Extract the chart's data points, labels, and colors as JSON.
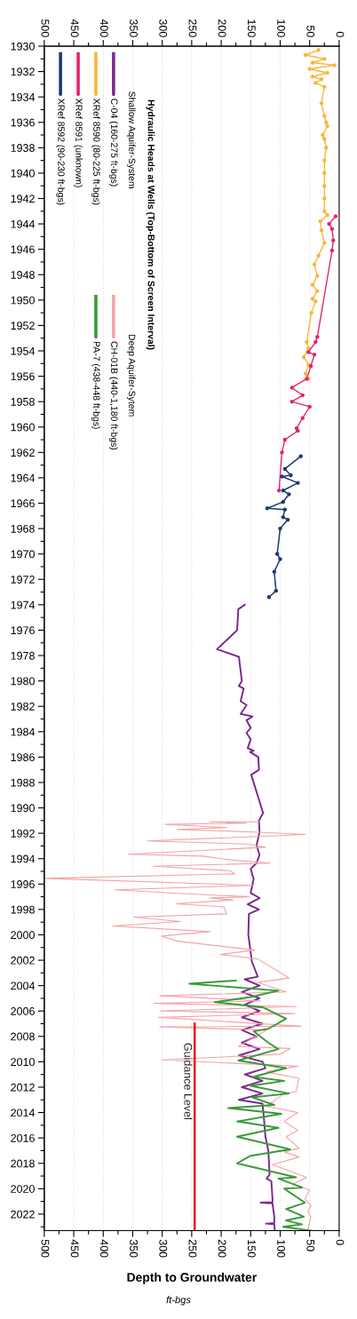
{
  "chart_data": {
    "type": "line",
    "orientation": "horizontal",
    "xlabel": "Depth to Groundwater",
    "legend_title": "Hydraulic Heads at Wells (Top-Bottom of Screen Interval)",
    "annotations": [
      "Shallow Aquifer-System",
      "Deep Aquifer-Sytem",
      "ft-bgs"
    ],
    "xlim": [
      500,
      0
    ],
    "x2lim": [
      500,
      0
    ],
    "xticks": [
      500,
      {
        "value": 475,
        "label": null
      },
      450,
      {
        "value": 425,
        "label": null
      },
      400,
      {
        "value": 375,
        "label": null
      },
      350,
      {
        "value": 325,
        "label": null
      },
      300,
      {
        "value": 275,
        "label": null
      },
      250,
      {
        "value": 225,
        "label": null
      },
      200,
      {
        "value": 175,
        "label": null
      },
      150,
      {
        "value": 125,
        "label": null
      },
      100,
      {
        "value": 75,
        "label": null
      },
      50,
      {
        "value": 25,
        "label": null
      },
      0
    ],
    "x2ticks": [
      500,
      {
        "value": 475,
        "label": null
      },
      450,
      {
        "value": 425,
        "label": null
      },
      400,
      {
        "value": 375,
        "label": null
      },
      350,
      {
        "value": 325,
        "label": null
      },
      300,
      {
        "value": 275,
        "label": null
      },
      250,
      {
        "value": 225,
        "label": null
      },
      200,
      {
        "value": 175,
        "label": null
      },
      150,
      {
        "value": 125,
        "label": null
      },
      100,
      {
        "value": 75,
        "label": null
      },
      50,
      {
        "value": 25,
        "label": null
      },
      0
    ],
    "ylim": [
      2023.3,
      1930
    ],
    "yticks": [
      1930,
      {
        "value": 1931,
        "label": null
      },
      1932,
      {
        "value": 1933,
        "label": null
      },
      1934,
      {
        "value": 1935,
        "label": null
      },
      1936,
      {
        "value": 1937,
        "label": null
      },
      1938,
      {
        "value": 1939,
        "label": null
      },
      1940,
      {
        "value": 1941,
        "label": null
      },
      1942,
      {
        "value": 1943,
        "label": null
      },
      1944,
      {
        "value": 1945,
        "label": null
      },
      1946,
      {
        "value": 1947,
        "label": null
      },
      1948,
      {
        "value": 1949,
        "label": null
      },
      1950,
      {
        "value": 1951,
        "label": null
      },
      1952,
      {
        "value": 1953,
        "label": null
      },
      1954,
      {
        "value": 1955,
        "label": null
      },
      1956,
      {
        "value": 1957,
        "label": null
      },
      1958,
      {
        "value": 1959,
        "label": null
      },
      1960,
      {
        "value": 1961,
        "label": null
      },
      1962,
      {
        "value": 1963,
        "label": null
      },
      1964,
      {
        "value": 1965,
        "label": null
      },
      1966,
      {
        "value": 1967,
        "label": null
      },
      1968,
      {
        "value": 1969,
        "label": null
      },
      1970,
      {
        "value": 1971,
        "label": null
      },
      1972,
      {
        "value": 1973,
        "label": null
      },
      1974,
      {
        "value": 1975,
        "label": null
      },
      1976,
      {
        "value": 1977,
        "label": null
      },
      1978,
      {
        "value": 1979,
        "label": null
      },
      1980,
      {
        "value": 1981,
        "label": null
      },
      1982,
      {
        "value": 1983,
        "label": null
      },
      1984,
      {
        "value": 1985,
        "label": null
      },
      1986,
      {
        "value": 1987,
        "label": null
      },
      1988,
      {
        "value": 1989,
        "label": null
      },
      1990,
      {
        "value": 1991,
        "label": null
      },
      1992,
      {
        "value": 1993,
        "label": null
      },
      1994,
      {
        "value": 1995,
        "label": null
      },
      1996,
      {
        "value": 1997,
        "label": null
      },
      1998,
      {
        "value": 1999,
        "label": null
      },
      2000,
      {
        "value": 2001,
        "label": null
      },
      2002,
      {
        "value": 2003,
        "label": null
      },
      2004,
      {
        "value": 2005,
        "label": null
      },
      2006,
      {
        "value": 2007,
        "label": null
      },
      2008,
      {
        "value": 2009,
        "label": null
      },
      2010,
      {
        "value": 2011,
        "label": null
      },
      2012,
      {
        "value": 2013,
        "label": null
      },
      2014,
      {
        "value": 2015,
        "label": null
      },
      2016,
      {
        "value": 2017,
        "label": null
      },
      2018,
      {
        "value": 2019,
        "label": null
      },
      2020,
      {
        "value": 2021,
        "label": null
      },
      2022,
      {
        "value": 2023,
        "label": null
      }
    ],
    "grid": "x",
    "legend": "top left",
    "series": [
      {
        "name": "C-04 (160-275 ft-bgs)",
        "color": "#7a2a8c",
        "marker": "none",
        "x": [
          1974.0,
          1974.35,
          1976.0,
          1977.5,
          1978.1,
          1980.0,
          1980.4,
          1980.6,
          1981.6,
          1981.9,
          1982.6,
          1982.8,
          1983.1,
          1983.7,
          1984.1,
          1984.6,
          1985.3,
          1985.5,
          1985.6,
          1986.0,
          1987.0,
          1987.4,
          1990.4,
          1991.0,
          1991.9,
          1992.95,
          1993.7,
          1994.35,
          1994.8,
          1995.6,
          1996.7,
          1997.1,
          1997.6,
          1998.0,
          1998.35,
          2000.0,
          2002.1,
          2003.3,
          2003.5,
          2004.0,
          2004.5,
          2005.0,
          2005.5,
          2006.0,
          2006.5,
          2007.0,
          2007.5,
          2008.0,
          2008.5,
          2009.0,
          2009.5,
          2010.0,
          2010.5,
          2011.0,
          2011.5,
          2012.0,
          2012.5,
          2013.0,
          2013.3,
          2014.2,
          2015.9,
          2017.0,
          2018.9,
          2019.2,
          2019.4,
          2020.8,
          2021.05,
          2021.1,
          2021.15,
          2022.2,
          2022.7,
          2022.75,
          2022.8,
          2023.3
        ],
        "values": [
          160,
          171,
          173,
          207,
          170,
          165,
          170,
          162,
          167,
          157,
          167,
          147,
          157,
          150,
          157,
          150,
          155,
          145,
          151,
          137,
          136,
          149,
          129,
          136,
          135,
          140,
          135,
          140,
          150,
          145,
          150,
          135,
          155,
          136,
          153,
          154,
          148,
          138,
          160,
          135,
          165,
          135,
          160,
          135,
          165,
          130,
          165,
          140,
          165,
          135,
          170,
          130,
          125,
          160,
          130,
          165,
          130,
          170,
          130,
          128,
          125,
          120,
          118,
          123,
          115,
          113,
          113,
          133,
          113,
          110,
          110,
          124,
          110,
          109
        ]
      },
      {
        "name": "XRef 8590 (80-225 ft-bgs)",
        "color": "#f8b63c",
        "marker": "circle",
        "x": [
          1930.3,
          1930.7,
          1931.0,
          1931.3,
          1931.5,
          1931.8,
          1932.1,
          1932.4,
          1932.6,
          1932.9,
          1933.2,
          1934.5,
          1935.5,
          1936.0,
          1936.3,
          1937.0,
          1937.3,
          1938.0,
          1939.0,
          1940.0,
          1941.0,
          1942.0,
          1943.0,
          1943.3,
          1943.8,
          1944.5,
          1945.5,
          1946.5,
          1947.2,
          1948.1,
          1948.8,
          1949.3,
          1949.9,
          1950.1,
          1951.0,
          1953.3,
          1953.8,
          1954.5,
          1955.1,
          1955.8,
          1956.2
        ],
        "values": [
          35,
          57,
          25,
          45,
          8,
          50,
          20,
          45,
          30,
          40,
          25,
          30,
          25,
          22,
          20,
          28,
          25,
          22,
          25,
          25,
          25,
          25,
          25,
          20,
          32,
          30,
          25,
          35,
          42,
          37,
          45,
          37,
          45,
          40,
          47,
          55,
          52,
          60,
          52,
          57,
          52
        ]
      },
      {
        "name": "XRef 8591 (unknown)",
        "color": "#e0266e",
        "marker": "circle",
        "x": [
          1943.4,
          1944.0,
          1944.4,
          1945.3,
          1946.1,
          1952.9,
          1953.3,
          1954.1,
          1954.3,
          1955.2,
          1956.2,
          1956.9,
          1957.5,
          1958.0,
          1958.4,
          1959.3,
          1960.1,
          1960.3,
          1961.0,
          1962.0,
          1965.0
        ],
        "values": [
          6,
          17,
          12,
          10,
          12,
          37,
          40,
          52,
          42,
          48,
          55,
          80,
          62,
          80,
          50,
          62,
          72,
          70,
          92,
          97,
          102
        ]
      },
      {
        "name": "XRef 8592 (90-230 ft-bgs)",
        "color": "#1f3a70",
        "marker": "circle",
        "x": [
          1962.3,
          1963.3,
          1963.8,
          1963.9,
          1964.4,
          1965.0,
          1965.3,
          1965.9,
          1966.4,
          1966.5,
          1967.1,
          1967.3,
          1968.0,
          1970.0,
          1970.4,
          1971.4,
          1972.9,
          1973.4
        ],
        "values": [
          65,
          92,
          82,
          97,
          70,
          95,
          85,
          95,
          122,
          92,
          95,
          87,
          100,
          105,
          100,
          110,
          107,
          119
        ]
      },
      {
        "name": "CH-01B (440-1,180 ft-bgs)",
        "color": "#f4a3a6",
        "marker": "none",
        "x": [
          1991.1,
          1991.1,
          1991.2,
          1991.3,
          1991.55,
          1991.7,
          1991.9,
          1992.1,
          1992.25,
          1992.6,
          1992.85,
          1993.1,
          1993.65,
          1993.8,
          1994.1,
          1994.35,
          1994.6,
          1994.95,
          1995.2,
          1995.55,
          1996.1,
          1996.45,
          1996.8,
          1997.0,
          1997.1,
          1997.25,
          1997.55,
          1997.8,
          1998.35,
          1998.6,
          1998.95,
          1999.3,
          1999.75,
          2000.1,
          2000.5,
          2001.2,
          2001.55,
          2001.9,
          2003.4,
          2003.75,
          2004.5,
          2004.8,
          2005.2,
          2005.4,
          2005.65,
          2006.0,
          2006.2,
          2006.5,
          2007.2,
          2007.25,
          2007.5,
          2008.8,
          2008.95,
          2009.4,
          2009.85,
          2010.35,
          2010.8,
          2011.3,
          2012.35,
          2012.5,
          2013.5,
          2014.0,
          2014.7,
          2015.4,
          2015.9,
          2016.8,
          2017.1,
          2017.5,
          2018.1,
          2019.1,
          2019.65,
          2020.1,
          2020.8,
          2021.3,
          2021.8,
          2022.2,
          2023.2
        ],
        "values": [
          137,
          220,
          157,
          295,
          190,
          275,
          145,
          57,
          135,
          325,
          155,
          125,
          357,
          230,
          185,
          117,
          315,
          185,
          177,
          500,
          145,
          380,
          245,
          152,
          220,
          180,
          277,
          195,
          191,
          349,
          269,
          384,
          219,
          301,
          274,
          143,
          201,
          138,
          85,
          138,
          90,
          304,
          133,
          314,
          73,
          304,
          75,
          306,
          65,
          304,
          123,
          171,
          83,
          100,
          301,
          70,
          123,
          68,
          73,
          93,
          123,
          70,
          93,
          70,
          90,
          68,
          93,
          68,
          113,
          55,
          78,
          50,
          58,
          48,
          53,
          48,
          53
        ]
      },
      {
        "name": "PA-7 (438-448 ft-bgs)",
        "color": "#3a9a3a",
        "marker": "none",
        "x": [
          2003.6,
          2003.85,
          2004.4,
          2004.9,
          2005.3,
          2005.7,
          2006.6,
          2007.4,
          2007.6,
          2008.5,
          2009.0,
          2009.9,
          2010.5,
          2011.2,
          2011.5,
          2011.9,
          2012.5,
          2012.8,
          2013.4,
          2013.65,
          2014.1,
          2014.7,
          2015.2,
          2015.9,
          2016.9,
          2017.4,
          2018.0,
          2019.1,
          2019.2,
          2019.9,
          2020.0,
          2021.1,
          2021.6,
          2022.0,
          2022.2,
          2022.5,
          2022.8,
          2023.0,
          2023.3
        ],
        "values": [
          175,
          254,
          103,
          150,
          211,
          130,
          90,
          120,
          145,
          120,
          103,
          171,
          90,
          146,
          93,
          150,
          85,
          148,
          110,
          188,
          98,
          173,
          103,
          173,
          83,
          150,
          173,
          73,
          103,
          63,
          93,
          58,
          90,
          70,
          60,
          90,
          63,
          95,
          47
        ]
      },
      {
        "name": "Guidance Level",
        "color": "#e8141c",
        "marker": "none",
        "x": [
          2007.0,
          2023.3
        ],
        "values": [
          245,
          245
        ]
      }
    ]
  }
}
